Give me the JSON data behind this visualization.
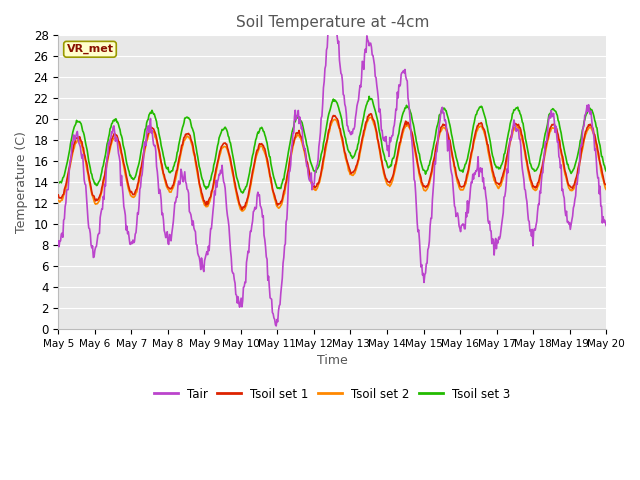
{
  "title": "Soil Temperature at -4cm",
  "xlabel": "Time",
  "ylabel": "Temperature (C)",
  "ylim": [
    0,
    28
  ],
  "yticks": [
    0,
    2,
    4,
    6,
    8,
    10,
    12,
    14,
    16,
    18,
    20,
    22,
    24,
    26,
    28
  ],
  "xtick_labels": [
    "May 5",
    "May 6",
    "May 7",
    "May 8",
    "May 9",
    "May 10",
    "May 11",
    "May 12",
    "May 13",
    "May 14",
    "May 15",
    "May 16",
    "May 17",
    "May 18",
    "May 19",
    "May 20"
  ],
  "colors": {
    "Tair": "#bb44cc",
    "Tsoil1": "#dd2200",
    "Tsoil2": "#ff8800",
    "Tsoil3": "#22bb00"
  },
  "bg_color": "#e8e8e8",
  "annotation_label": "VR_met",
  "annotation_color": "#881100",
  "annotation_bg": "#ffffcc",
  "annotation_border": "#999900",
  "grid_color": "#ffffff",
  "line_width": 1.2,
  "pts_per_day": 48,
  "n_days": 15
}
